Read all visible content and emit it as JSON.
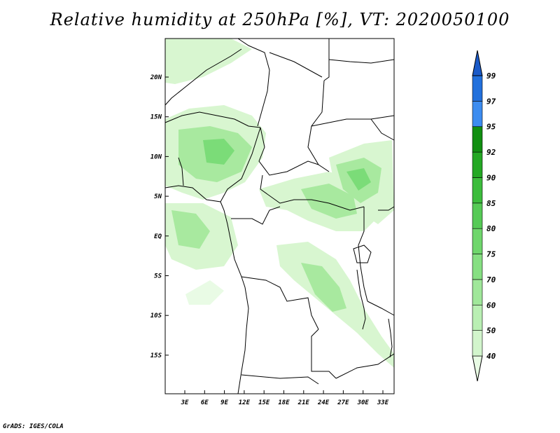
{
  "title": "Relative humidity at 250hPa [%], VT: 2020050100",
  "credit": "GrADS: IGES/COLA",
  "map": {
    "lat_labels": [
      "20N",
      "15N",
      "10N",
      "5N",
      "EQ",
      "5S",
      "10S",
      "15S"
    ],
    "lon_labels": [
      "3E",
      "6E",
      "9E",
      "12E",
      "15E",
      "18E",
      "21E",
      "24E",
      "27E",
      "30E",
      "33E"
    ]
  },
  "colorbar": {
    "levels": [
      "40",
      "50",
      "60",
      "70",
      "75",
      "80",
      "85",
      "90",
      "92",
      "95",
      "97",
      "99"
    ],
    "colors": [
      "#e8fbe4",
      "#d2f5cc",
      "#b9efb3",
      "#a0e79a",
      "#86df82",
      "#6fd66c",
      "#56ca56",
      "#3cbc3c",
      "#24a824",
      "#118f11",
      "#3c8cf0",
      "#2270dc",
      "#1a5ac8"
    ],
    "colors_meaning": "bands from below 40 through above 99"
  }
}
